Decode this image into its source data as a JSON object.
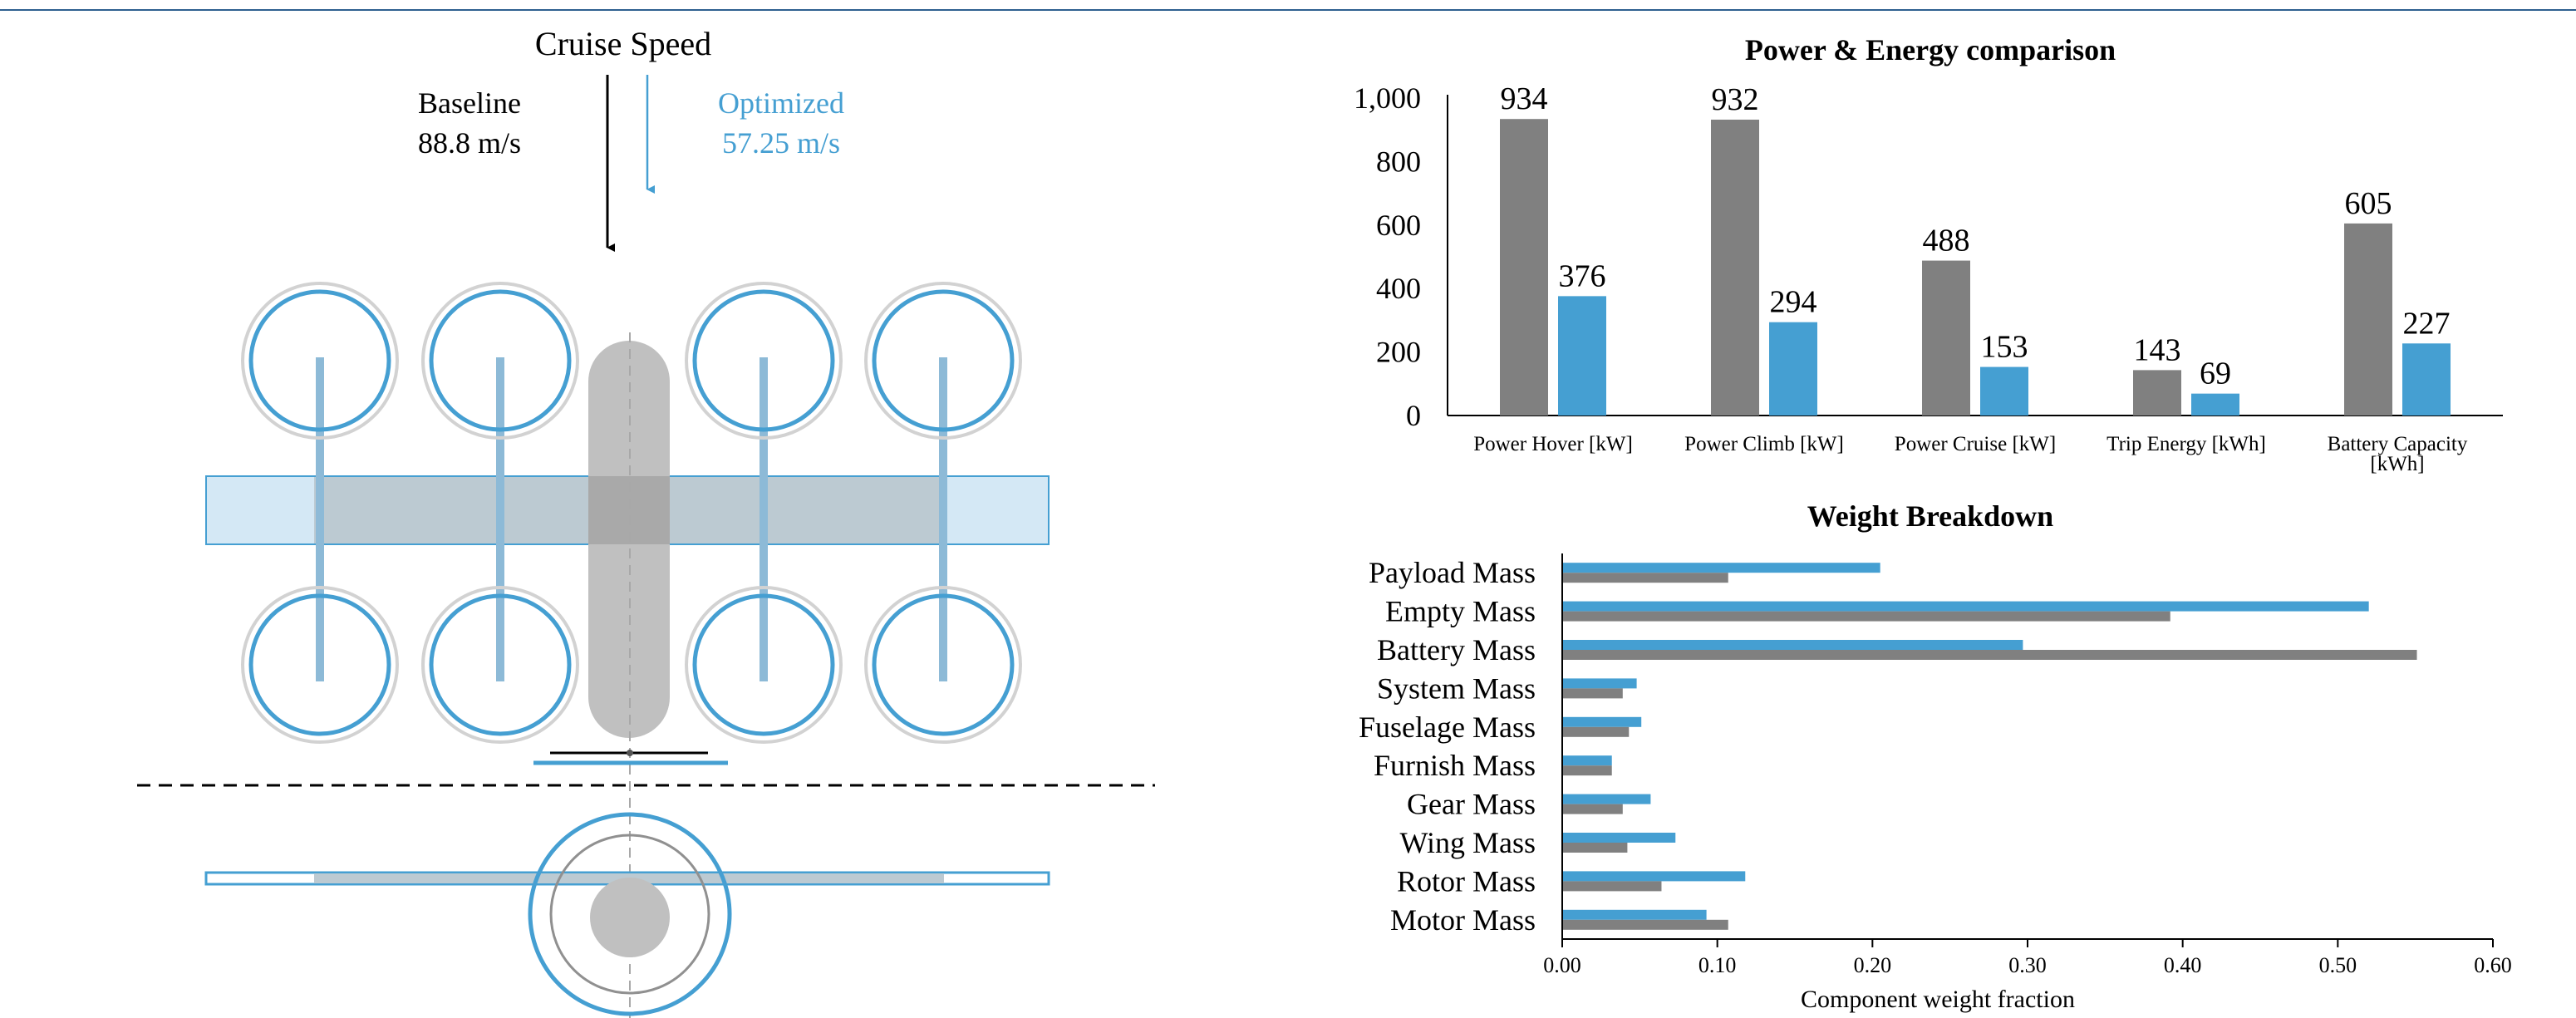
{
  "colors": {
    "baseline": "#808080",
    "optimized": "#459fd2",
    "rule": "#2e5f8f",
    "axis": "#000000"
  },
  "diagram": {
    "speed_title": "Cruise Speed",
    "baseline_label": "Baseline",
    "baseline_value": "88.8 m/s",
    "optimized_label": "Optimized",
    "optimized_value": "57.25 m/s"
  },
  "chart_data": [
    {
      "type": "bar",
      "title": "Power & Energy comparison",
      "categories": [
        "Power Hover [kW]",
        "Power Climb [kW]",
        "Power Cruise [kW]",
        "Trip Energy [kWh]",
        "Battery Capacity [kWh]"
      ],
      "category_lines": [
        [
          "Power Hover [kW]"
        ],
        [
          "Power Climb [kW]"
        ],
        [
          "Power Cruise [kW]"
        ],
        [
          "Trip Energy [kWh]"
        ],
        [
          "Battery Capacity",
          "[kWh]"
        ]
      ],
      "series": [
        {
          "name": "Baseline",
          "values": [
            934,
            932,
            488,
            143,
            605
          ]
        },
        {
          "name": "Optimized",
          "values": [
            376,
            294,
            153,
            69,
            227
          ]
        }
      ],
      "value_labels": {
        "Baseline": [
          "934",
          "932",
          "488",
          "143",
          "605"
        ],
        "Optimized": [
          "376",
          "294",
          "153",
          "69",
          "227"
        ]
      },
      "yticks": [
        0,
        200,
        400,
        600,
        800,
        1000
      ],
      "ytick_labels": [
        "0",
        "200",
        "400",
        "600",
        "800",
        "1,000"
      ],
      "ylim": [
        0,
        1000
      ],
      "xlabel": "",
      "ylabel": "",
      "legend": "none"
    },
    {
      "type": "bar",
      "orientation": "horizontal",
      "title": "Weight Breakdown",
      "categories": [
        "Payload Mass",
        "Empty Mass",
        "Battery Mass",
        "System Mass",
        "Fuselage Mass",
        "Furnish Mass",
        "Gear Mass",
        "Wing Mass",
        "Rotor Mass",
        "Motor Mass"
      ],
      "series": [
        {
          "name": "Optimized",
          "values": [
            0.205,
            0.52,
            0.297,
            0.048,
            0.051,
            0.032,
            0.057,
            0.073,
            0.118,
            0.093
          ]
        },
        {
          "name": "Baseline",
          "values": [
            0.107,
            0.392,
            0.551,
            0.039,
            0.043,
            0.032,
            0.039,
            0.042,
            0.064,
            0.107
          ]
        }
      ],
      "xticks": [
        0.0,
        0.1,
        0.2,
        0.3,
        0.4,
        0.5,
        0.6
      ],
      "xtick_labels": [
        "0.00",
        "0.10",
        "0.20",
        "0.30",
        "0.40",
        "0.50",
        "0.60"
      ],
      "xlim": [
        0,
        0.6
      ],
      "xlabel": "Component weight fraction",
      "ylabel": "",
      "legend": "none"
    }
  ]
}
